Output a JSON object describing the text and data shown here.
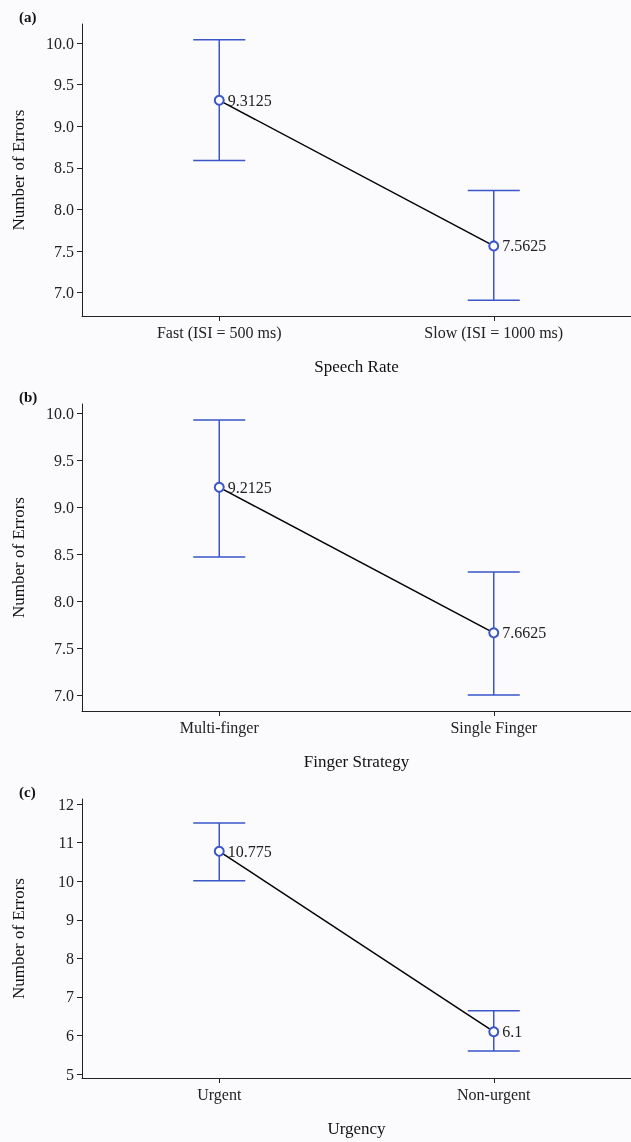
{
  "chart_data": [
    {
      "type": "line",
      "title": "(a)",
      "xlabel": "Speech Rate",
      "ylabel": "Number of Errors",
      "categories": [
        "Fast (ISI = 500 ms)",
        "Slow (ISI = 1000 ms)"
      ],
      "series": [
        {
          "color": "#000000",
          "values": [
            9.3125,
            7.5625
          ],
          "errors": [
            [
              8.59,
              10.04
            ],
            [
              6.91,
              8.23
            ]
          ]
        }
      ],
      "ylim": [
        6.72,
        10.23
      ],
      "yticks": [
        {
          "value": 7,
          "label": "7.0"
        },
        {
          "value": 7.5,
          "label": "7.5"
        },
        {
          "value": 8,
          "label": "8.0"
        },
        {
          "value": 8.5,
          "label": "8.5"
        },
        {
          "value": 9,
          "label": "9.0"
        },
        {
          "value": 9.5,
          "label": "9.5"
        },
        {
          "value": 10,
          "label": "10.0"
        }
      ],
      "data_labels": true,
      "marker": "circle",
      "grid": false
    },
    {
      "type": "line",
      "title": "(b)",
      "xlabel": "Finger Strategy",
      "ylabel": "Number of Errors",
      "categories": [
        "Multi-finger",
        "Single Finger"
      ],
      "series": [
        {
          "color": "#000000",
          "values": [
            9.2125,
            7.6625
          ],
          "errors": [
            [
              8.47,
              9.93
            ],
            [
              7.0,
              8.31
            ]
          ]
        }
      ],
      "ylim": [
        6.83,
        10.1
      ],
      "yticks": [
        {
          "value": 7,
          "label": "7.0"
        },
        {
          "value": 7.5,
          "label": "7.5"
        },
        {
          "value": 8,
          "label": "8.0"
        },
        {
          "value": 8.5,
          "label": "8.5"
        },
        {
          "value": 9,
          "label": "9.0"
        },
        {
          "value": 9.5,
          "label": "9.5"
        },
        {
          "value": 10,
          "label": "10.0"
        }
      ],
      "data_labels": true,
      "marker": "circle",
      "grid": false
    },
    {
      "type": "line",
      "title": "(c)",
      "xlabel": "Urgency",
      "ylabel": "Number of Errors",
      "categories": [
        "Urgent",
        "Non-urgent"
      ],
      "series": [
        {
          "color": "#000000",
          "values": [
            10.775,
            6.1
          ],
          "errors": [
            [
              10.01,
              11.51
            ],
            [
              5.6,
              6.64
            ]
          ]
        }
      ],
      "ylim": [
        4.9,
        12.13
      ],
      "yticks": [
        5,
        6,
        7,
        8,
        9,
        10,
        11,
        12
      ],
      "data_labels": true,
      "marker": "circle",
      "grid": false
    }
  ]
}
